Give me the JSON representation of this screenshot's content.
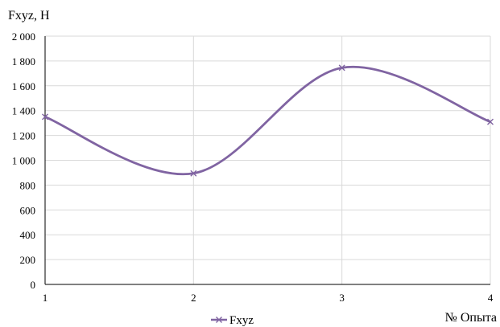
{
  "chart_data": {
    "type": "line",
    "ylabel": "Fxyz, H",
    "xlabel": "№ Опыта",
    "x": [
      1,
      2,
      3,
      4
    ],
    "x_tick_labels": [
      "1",
      "2",
      "3",
      "4"
    ],
    "y_tick_labels": [
      "0",
      "200",
      "400",
      "600",
      "800",
      "1 000",
      "1 200",
      "1 400",
      "1 600",
      "1 800",
      "2 000"
    ],
    "ylim": [
      0,
      2000
    ],
    "xlim": [
      1,
      4
    ],
    "y_step": 200,
    "grid": true,
    "smooth": true,
    "marker": "x",
    "legend_position": "bottom",
    "series": [
      {
        "name": "Fxyz",
        "values": [
          1350,
          895,
          1745,
          1310
        ],
        "color": "#8064a2"
      }
    ],
    "colors": {
      "grid": "#d9d9d9",
      "axis": "#000000",
      "series": "#8064a2"
    }
  }
}
